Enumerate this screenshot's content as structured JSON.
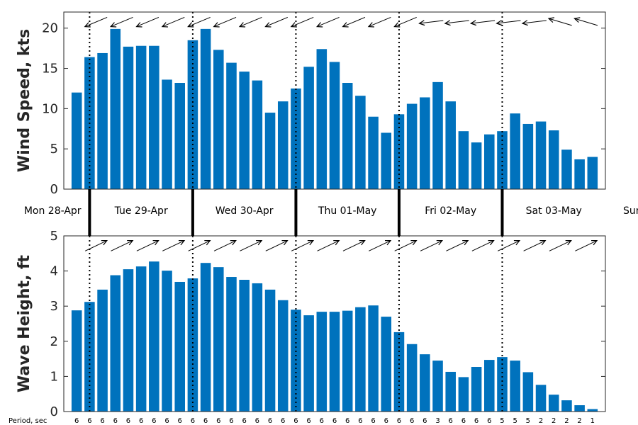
{
  "chart_data": [
    {
      "type": "bar",
      "ylabel": "Wind Speed, kts",
      "ylim": [
        0,
        22
      ],
      "yticks": [
        0,
        5,
        10,
        15,
        20
      ],
      "color": "#0072BD",
      "values": [
        12,
        16.4,
        16.9,
        19.9,
        17.7,
        17.8,
        17.8,
        13.6,
        13.2,
        18.5,
        19.9,
        17.3,
        15.7,
        14.6,
        13.5,
        9.5,
        10.9,
        12.5,
        15.2,
        17.4,
        15.8,
        13.2,
        11.6,
        9.0,
        7.0,
        9.3,
        10.6,
        11.4,
        13.3,
        10.9,
        7.2,
        5.8,
        6.8,
        7.2,
        9.4,
        8.1,
        8.4,
        7.3,
        4.9,
        3.7,
        4.0
      ],
      "direction_arrows": [
        {
          "x": 1.5,
          "dir": "left-down"
        },
        {
          "x": 3.5,
          "dir": "left-down"
        },
        {
          "x": 5.5,
          "dir": "left-down"
        },
        {
          "x": 7.5,
          "dir": "left-down"
        },
        {
          "x": 9.5,
          "dir": "left-down"
        },
        {
          "x": 11.5,
          "dir": "left-down"
        },
        {
          "x": 13.5,
          "dir": "left-down"
        },
        {
          "x": 15.5,
          "dir": "left-down"
        },
        {
          "x": 17.5,
          "dir": "left-down"
        },
        {
          "x": 19.5,
          "dir": "left-down"
        },
        {
          "x": 21.5,
          "dir": "left-down"
        },
        {
          "x": 23.5,
          "dir": "left-down"
        },
        {
          "x": 25.5,
          "dir": "left-down"
        },
        {
          "x": 27.5,
          "dir": "left"
        },
        {
          "x": 29.5,
          "dir": "left"
        },
        {
          "x": 31.5,
          "dir": "left"
        },
        {
          "x": 33.5,
          "dir": "left"
        },
        {
          "x": 35.5,
          "dir": "left"
        },
        {
          "x": 37.5,
          "dir": "left-up"
        },
        {
          "x": 39.5,
          "dir": "left-up"
        }
      ]
    },
    {
      "type": "bar",
      "ylabel": "Wave Height, ft",
      "ylim": [
        0,
        5
      ],
      "yticks": [
        0,
        1,
        2,
        3,
        4,
        5
      ],
      "color": "#0072BD",
      "values": [
        2.88,
        3.12,
        3.47,
        3.88,
        4.05,
        4.13,
        4.27,
        4.01,
        3.69,
        3.79,
        4.23,
        4.11,
        3.83,
        3.75,
        3.65,
        3.47,
        3.17,
        2.9,
        2.74,
        2.84,
        2.84,
        2.87,
        2.97,
        3.02,
        2.7,
        2.26,
        1.92,
        1.63,
        1.45,
        1.13,
        0.98,
        1.27,
        1.47,
        1.55,
        1.45,
        1.12,
        0.76,
        0.48,
        0.32,
        0.18,
        0.07
      ],
      "direction_arrows": [
        {
          "x": 1.5,
          "dir": "right-up"
        },
        {
          "x": 3.5,
          "dir": "right-up"
        },
        {
          "x": 5.5,
          "dir": "right-up"
        },
        {
          "x": 7.5,
          "dir": "right-up"
        },
        {
          "x": 9.5,
          "dir": "right-up"
        },
        {
          "x": 11.5,
          "dir": "right-up"
        },
        {
          "x": 13.5,
          "dir": "right-up"
        },
        {
          "x": 15.5,
          "dir": "right-up"
        },
        {
          "x": 17.5,
          "dir": "right-up"
        },
        {
          "x": 19.5,
          "dir": "right-up"
        },
        {
          "x": 21.5,
          "dir": "right-up"
        },
        {
          "x": 23.5,
          "dir": "right-up"
        },
        {
          "x": 25.5,
          "dir": "right-up"
        },
        {
          "x": 27.5,
          "dir": "right-up"
        },
        {
          "x": 29.5,
          "dir": "right-up"
        },
        {
          "x": 31.5,
          "dir": "right-up"
        },
        {
          "x": 33.5,
          "dir": "right-up"
        },
        {
          "x": 35.5,
          "dir": "right-up"
        },
        {
          "x": 37.5,
          "dir": "right-up"
        },
        {
          "x": 39.5,
          "dir": "right-up"
        }
      ]
    }
  ],
  "day_labels": [
    "Mon 28-Apr",
    "Tue 29-Apr",
    "Wed 30-Apr",
    "Thu 01-May",
    "Fri 02-May",
    "Sat 03-May",
    "Sun"
  ],
  "day_boundaries": [
    1,
    9,
    17,
    25,
    33
  ],
  "period_label": "Period, sec",
  "periods": [
    "6",
    "6",
    "6",
    "6",
    "6",
    "6",
    "6",
    "6",
    "6",
    "6",
    "6",
    "6",
    "6",
    "6",
    "6",
    "6",
    "6",
    "6",
    "6",
    "6",
    "6",
    "6",
    "6",
    "6",
    "6",
    "6",
    "6",
    "6",
    "3",
    "6",
    "6",
    "6",
    "6",
    "5",
    "5",
    "5",
    "2",
    "2",
    "2",
    "2",
    "1"
  ]
}
